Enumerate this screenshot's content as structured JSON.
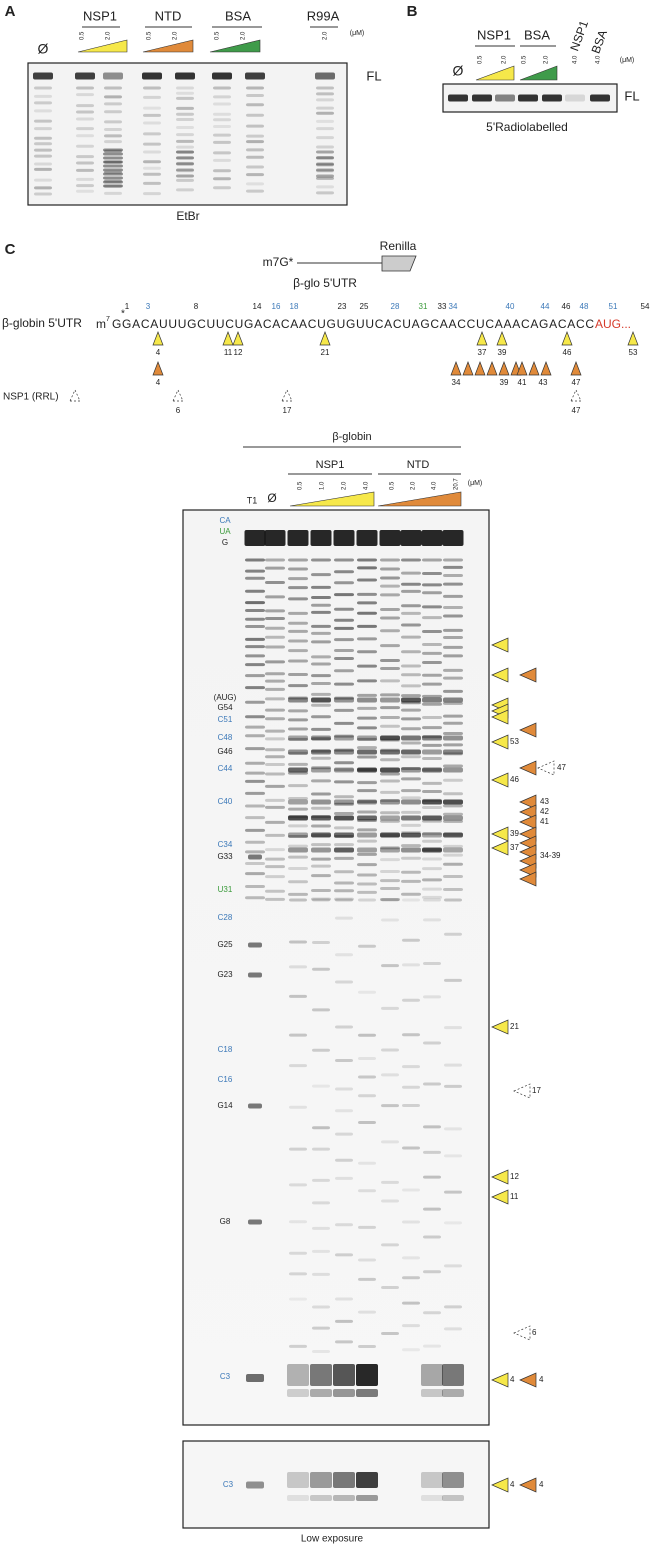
{
  "panel_a": {
    "label": "A",
    "none": "Ø",
    "groups": [
      "NSP1",
      "NTD",
      "BSA",
      "R99A"
    ],
    "concentrations": [
      "0.5",
      "2.0",
      "0.5",
      "2.0",
      "0.5",
      "2.0",
      "2.0"
    ],
    "unit": "(μM)",
    "band": "FL",
    "stain": "EtBr"
  },
  "panel_b": {
    "label": "B",
    "none": "Ø",
    "groups": [
      "NSP1",
      "BSA"
    ],
    "rotated": [
      "NSP1",
      "BSA"
    ],
    "concentrations": [
      "0.5",
      "2.0",
      "0.5",
      "2.0",
      "4.0",
      "4.0"
    ],
    "unit": "(μM)",
    "band": "FL",
    "caption": "5'Radiolabelled"
  },
  "panel_c": {
    "label": "C",
    "construct": {
      "cap": "m7G*",
      "reporter": "Renilla",
      "utr": "β-glo 5'UTR"
    },
    "sequence": {
      "name": "β-globin 5'UTR",
      "cap": "m",
      "cap_sup": "7",
      "bases": "GGACAUUUGCUUCUGACACAACUGUGUUCACUAGCAACCUCAAACAGACACC",
      "start": "AUG...",
      "positions": [
        "1",
        "3",
        "8",
        "14",
        "16",
        "18",
        "23",
        "25",
        "28",
        "31",
        "33",
        "34",
        "40",
        "44",
        "46",
        "48",
        "51",
        "54"
      ],
      "position_colors": [
        "#222",
        "#3b78b8",
        "#222",
        "#222",
        "#3b78b8",
        "#3b78b8",
        "#222",
        "#222",
        "#3b78b8",
        "#3a9a3a",
        "#222",
        "#3b78b8",
        "#3b78b8",
        "#3b78b8",
        "#222",
        "#3b78b8",
        "#3b78b8",
        "#222"
      ],
      "nsp1_sites": [
        "4",
        "11",
        "12",
        "21",
        "37",
        "39",
        "46",
        "53"
      ],
      "ntd_sites": [
        "4",
        "34",
        "39",
        "41",
        "43",
        "47"
      ],
      "rrl_label": "NSP1 (RRL)",
      "rrl_sites": [
        "6",
        "17",
        "47"
      ]
    },
    "gel": {
      "template": "β-globin",
      "groups": [
        "NSP1",
        "NTD"
      ],
      "t1": "T1",
      "none": "Ø",
      "concentrations": [
        "0.5",
        "1.0",
        "2.0",
        "4.0",
        "0.5",
        "2.0",
        "4.0",
        "20.7"
      ],
      "unit": "(μM)",
      "left_labels": [
        "CA",
        "UA",
        "G",
        "(AUG)",
        "G54",
        "C51",
        "C48",
        "G46",
        "C44",
        "C40",
        "C34",
        "G33",
        "U31",
        "C28",
        "G25",
        "G23",
        "C18",
        "C16",
        "G14",
        "G8",
        "C3"
      ],
      "left_colors": [
        "#3b78b8",
        "#3a9a3a",
        "#222",
        "#222",
        "#222",
        "#3b78b8",
        "#3b78b8",
        "#222",
        "#3b78b8",
        "#3b78b8",
        "#3b78b8",
        "#222",
        "#3a9a3a",
        "#3b78b8",
        "#222",
        "#222",
        "#3b78b8",
        "#3b78b8",
        "#222",
        "#222",
        "#3b78b8"
      ],
      "right_labels": [
        "53",
        "47",
        "46",
        "43",
        "42",
        "41",
        "39",
        "37",
        "34-39",
        "21",
        "17",
        "12",
        "11",
        "6",
        "4",
        "4"
      ]
    },
    "low_exposure": {
      "left_label": "C3",
      "right_labels": [
        "4",
        "4"
      ],
      "caption": "Low exposure"
    }
  }
}
